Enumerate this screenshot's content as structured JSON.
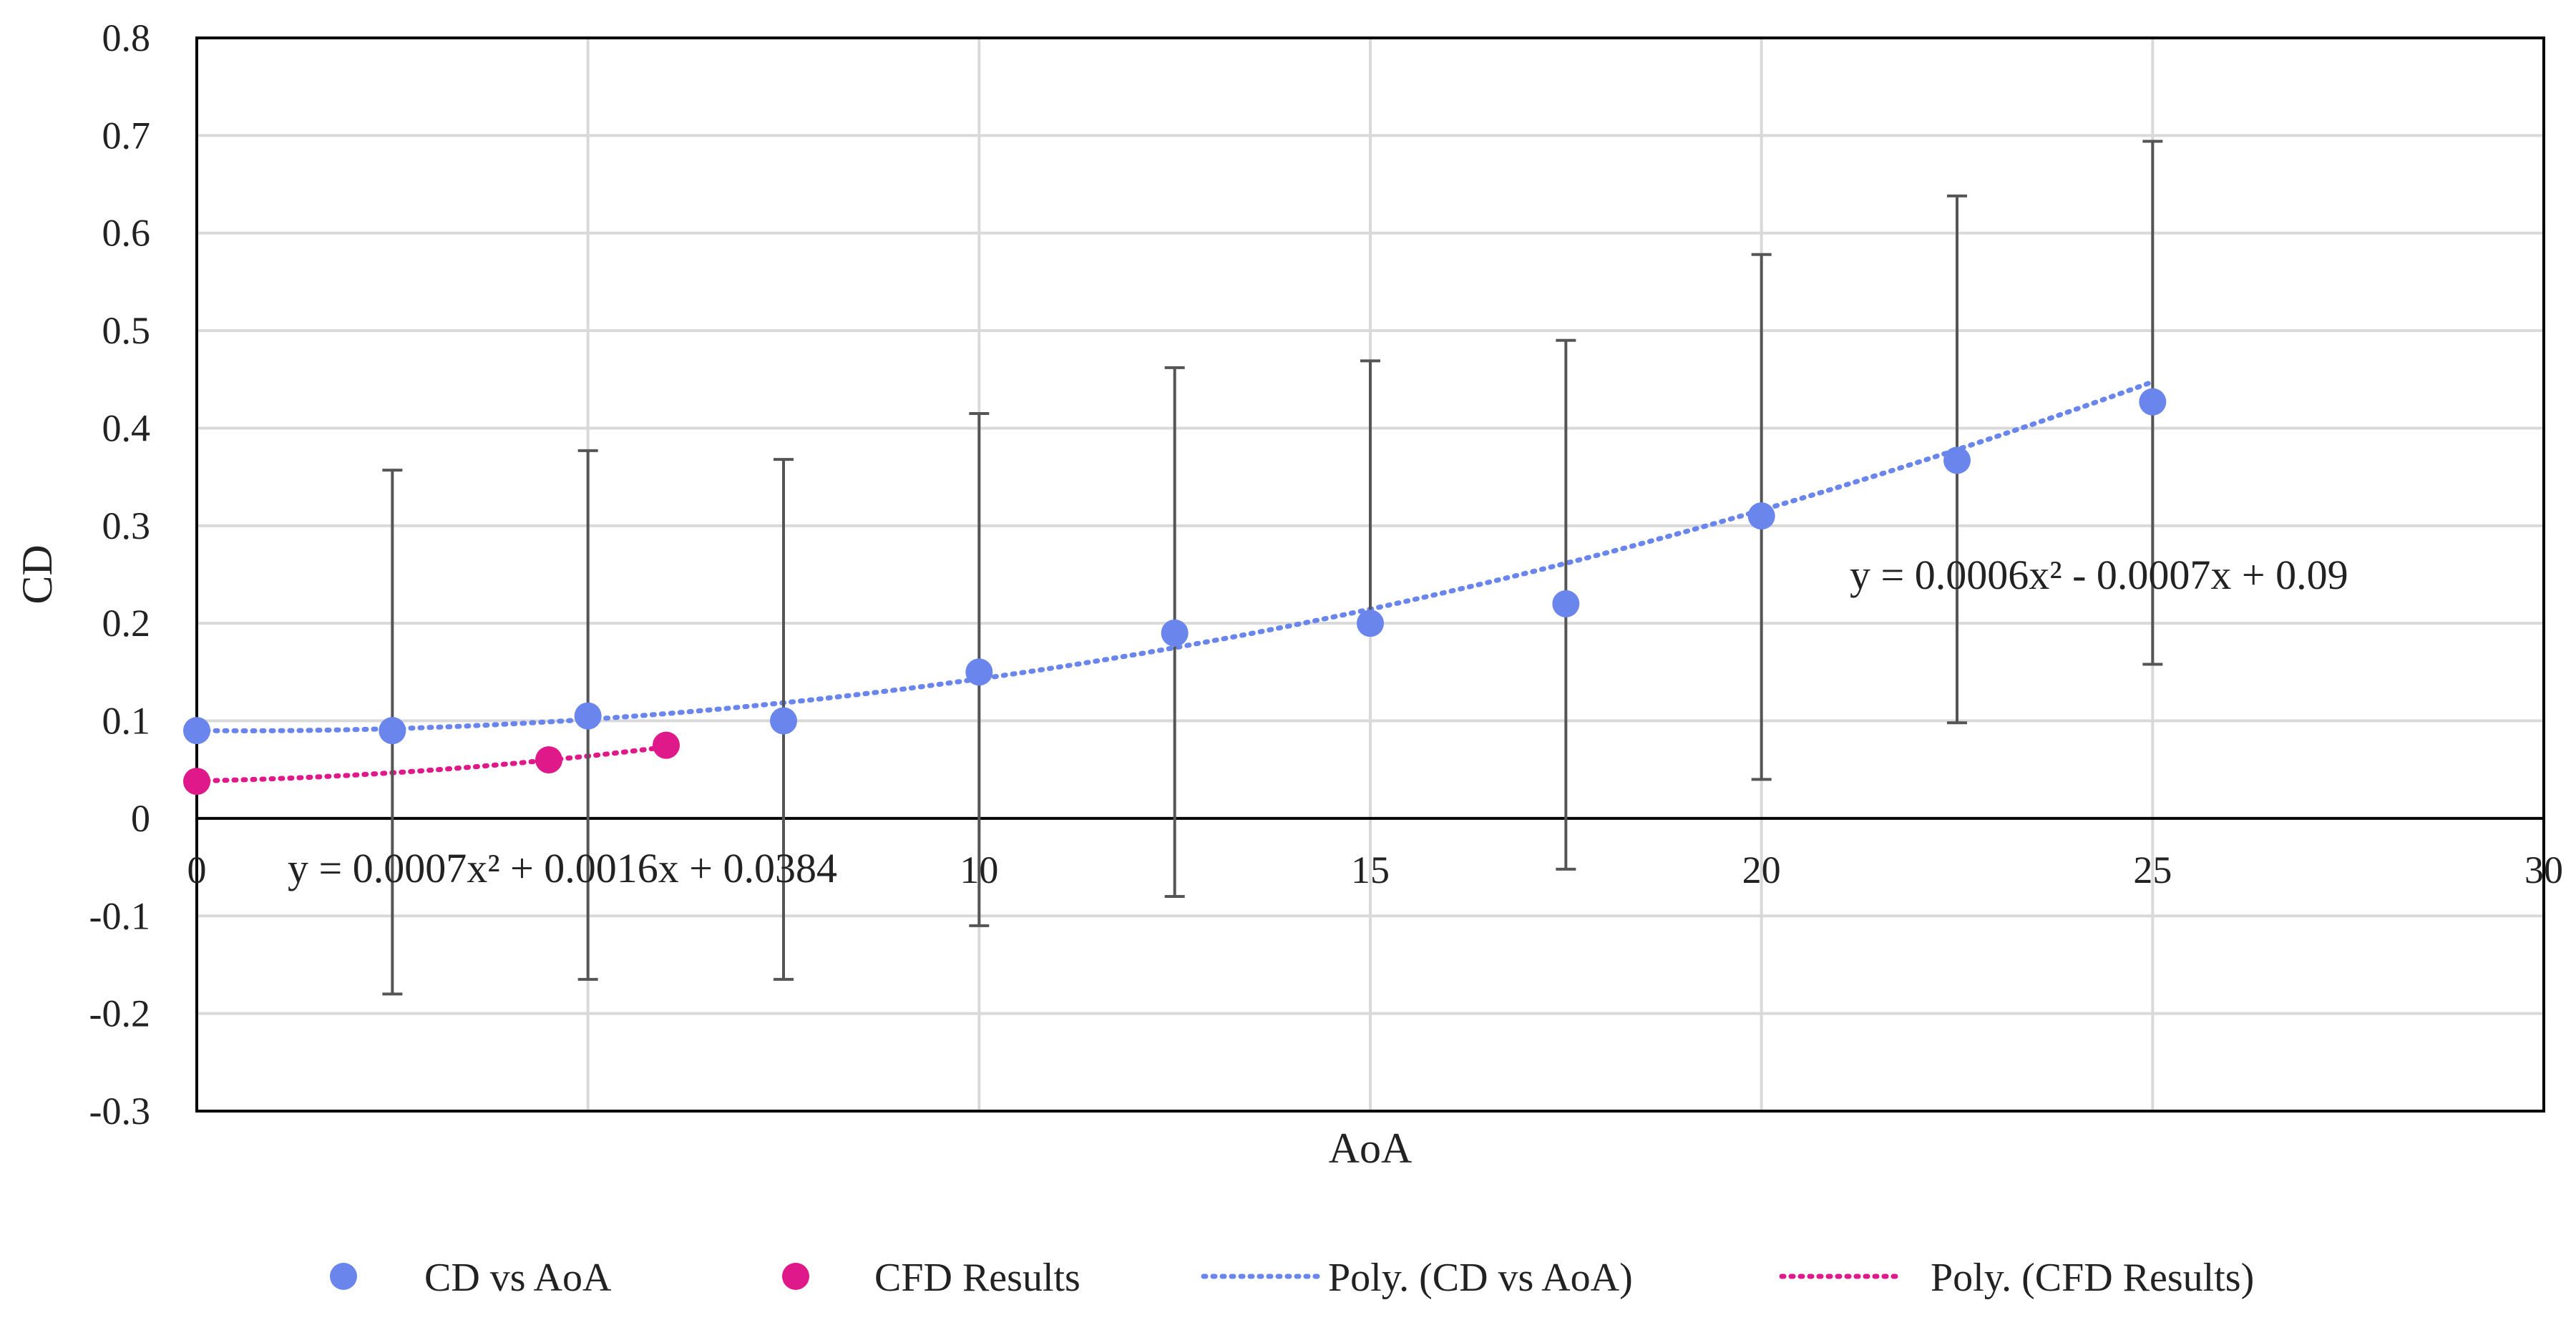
{
  "chart_data": {
    "type": "scatter",
    "xlabel": "AoA",
    "ylabel": "CD",
    "xlim": [
      0,
      30
    ],
    "ylim": [
      -0.3,
      0.8
    ],
    "x_ticks": [
      0,
      5,
      10,
      15,
      20,
      25,
      30
    ],
    "x_tick_labels": [
      "0",
      "",
      "10",
      "15",
      "20",
      "25",
      "30"
    ],
    "y_ticks": [
      -0.3,
      -0.2,
      -0.1,
      0,
      0.1,
      0.2,
      0.3,
      0.4,
      0.5,
      0.6,
      0.7,
      0.8
    ],
    "y_tick_labels": [
      "-0.3",
      "-0.2",
      "-0.1",
      "0",
      "0.1",
      "0.2",
      "0.3",
      "0.4",
      "0.5",
      "0.6",
      "0.7",
      "0.8"
    ],
    "grid": true,
    "legend_position": "bottom",
    "series": [
      {
        "name": "CD vs AoA",
        "color": "#6a86ec",
        "x": [
          0,
          2.5,
          5,
          7.5,
          10,
          12.5,
          15,
          17.5,
          20,
          22.5,
          25
        ],
        "y": [
          0.09,
          0.09,
          0.105,
          0.1,
          0.15,
          0.19,
          0.2,
          0.22,
          0.31,
          0.367,
          0.427
        ],
        "error_low": [
          null,
          -0.18,
          -0.165,
          -0.165,
          -0.11,
          -0.08,
          null,
          -0.052,
          0.04,
          0.098,
          0.158
        ],
        "error_high": [
          null,
          0.357,
          0.377,
          0.368,
          0.415,
          0.462,
          0.469,
          0.49,
          0.578,
          0.638,
          0.694
        ]
      },
      {
        "name": "CFD Results",
        "color": "#e0198a",
        "x": [
          0,
          4.5,
          6
        ],
        "y": [
          0.038,
          0.06,
          0.075
        ]
      }
    ],
    "trendlines": [
      {
        "name": "Poly. (CD vs AoA)",
        "color": "#6a86ec",
        "equation": "y = 0.0006x² - 0.0007x + 0.09",
        "coefficients": [
          0.0006,
          -0.0007,
          0.09
        ],
        "x_range": [
          0,
          25
        ]
      },
      {
        "name": "Poly. (CFD Results)",
        "color": "#e0198a",
        "equation": "y = 0.0007x² + 0.0016x + 0.0384",
        "coefficients": [
          0.0007,
          0.0016,
          0.0384
        ],
        "x_range": [
          0,
          6
        ]
      }
    ],
    "legend": [
      {
        "label": "CD vs AoA",
        "kind": "marker",
        "color": "#6a86ec"
      },
      {
        "label": "CFD Results",
        "kind": "marker",
        "color": "#e0198a"
      },
      {
        "label": "Poly. (CD vs AoA)",
        "kind": "dotted-line",
        "color": "#6a86ec"
      },
      {
        "label": "Poly. (CFD Results)",
        "kind": "dotted-line",
        "color": "#e0198a"
      }
    ]
  }
}
